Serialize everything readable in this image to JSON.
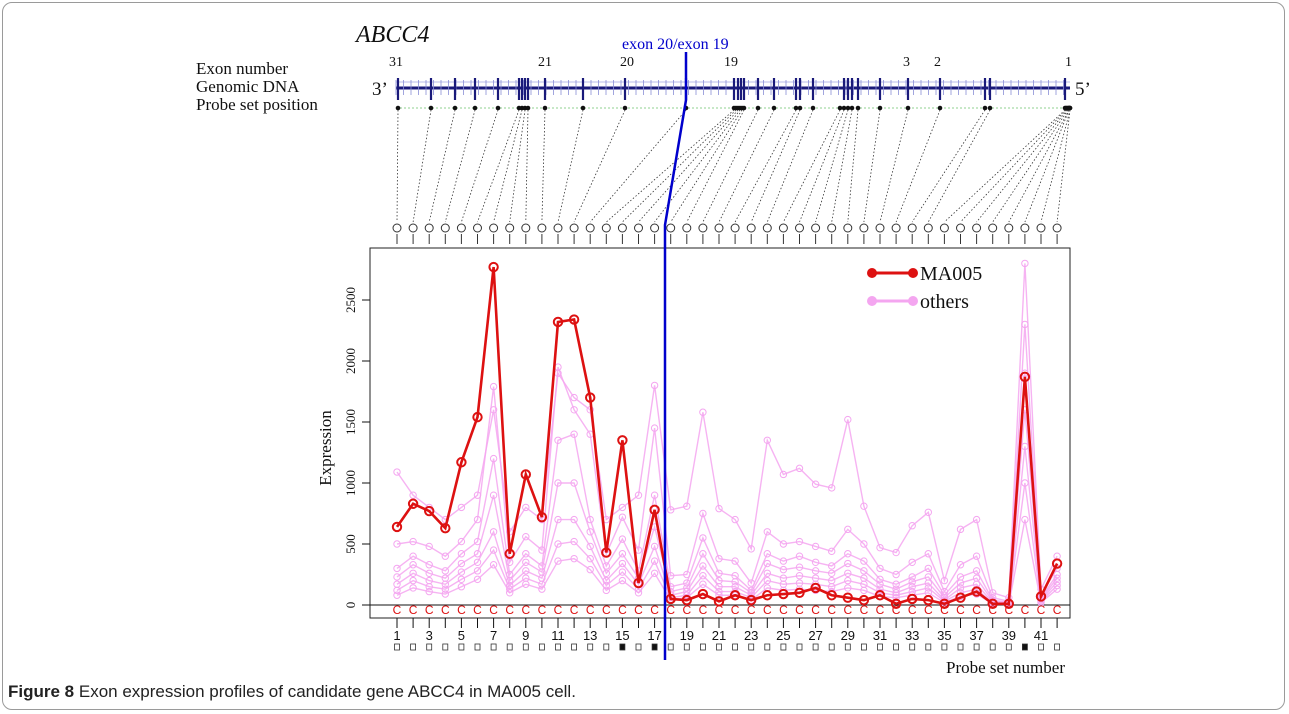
{
  "gene": "ABCC4",
  "genome": {
    "row_labels": [
      "Exon number",
      "Genomic DNA",
      "Probe set position"
    ],
    "end_left": "3’",
    "end_right": "5’",
    "exon_numbers": [
      "31",
      "21",
      "20",
      "19",
      "3",
      "2",
      "1"
    ],
    "marker_label": "exon 20/exon 19"
  },
  "caption": {
    "prefix": "Figure 8",
    "text": "Exon expression profiles of candidate gene ABCC4 in MA005 cell."
  },
  "colors": {
    "ma005": "#dd1111",
    "others": "#f4a6f0",
    "marker": "#0000cc",
    "genome": "#1a1a7a"
  },
  "chart_data": {
    "type": "line",
    "xlabel": "Probe set number",
    "ylabel": "Expression",
    "ylim": [
      -50,
      2900
    ],
    "yticks": [
      0,
      500,
      1000,
      1500,
      2000,
      2500
    ],
    "xtick_labels": [
      "1",
      "3",
      "5",
      "7",
      "9",
      "11",
      "13",
      "15",
      "17",
      "19",
      "21",
      "23",
      "25",
      "27",
      "29",
      "31",
      "33",
      "35",
      "37",
      "39",
      "41"
    ],
    "x": [
      1,
      2,
      3,
      4,
      5,
      6,
      7,
      8,
      9,
      10,
      11,
      12,
      13,
      14,
      15,
      16,
      17,
      18,
      19,
      20,
      21,
      22,
      23,
      24,
      25,
      26,
      27,
      28,
      29,
      30,
      31,
      32,
      33,
      34,
      35,
      36,
      37,
      38,
      39,
      40,
      41,
      42
    ],
    "legend": [
      "MA005",
      "others"
    ],
    "series": [
      {
        "name": "MA005",
        "values": [
          640,
          830,
          770,
          630,
          1170,
          1540,
          2770,
          420,
          1070,
          720,
          2320,
          2340,
          1700,
          430,
          1350,
          180,
          780,
          50,
          40,
          90,
          30,
          80,
          40,
          80,
          90,
          100,
          140,
          80,
          60,
          40,
          80,
          10,
          50,
          40,
          10,
          60,
          110,
          10,
          10,
          1870,
          70,
          340
        ]
      },
      {
        "values": [
          1090,
          900,
          800,
          700,
          800,
          900,
          1600,
          600,
          800,
          700,
          1900,
          1700,
          1600,
          700,
          800,
          900,
          1800,
          780,
          810,
          1580,
          790,
          700,
          460,
          1350,
          1070,
          1120,
          990,
          960,
          1520,
          810,
          470,
          430,
          650,
          760,
          200,
          620,
          700,
          100,
          60,
          2800,
          130,
          400
        ]
      },
      {
        "values": [
          500,
          520,
          480,
          400,
          520,
          700,
          1790,
          350,
          560,
          450,
          1950,
          1600,
          1400,
          420,
          720,
          450,
          1450,
          240,
          250,
          750,
          380,
          360,
          180,
          600,
          500,
          520,
          480,
          440,
          620,
          500,
          300,
          250,
          350,
          420,
          110,
          330,
          400,
          60,
          30,
          2300,
          80,
          300
        ]
      },
      {
        "values": [
          300,
          400,
          330,
          280,
          420,
          520,
          1200,
          250,
          420,
          320,
          1350,
          1400,
          700,
          320,
          540,
          280,
          900,
          150,
          180,
          550,
          260,
          240,
          120,
          420,
          360,
          400,
          350,
          320,
          420,
          360,
          210,
          170,
          230,
          300,
          80,
          230,
          280,
          40,
          20,
          1900,
          60,
          250
        ]
      },
      {
        "values": [
          230,
          330,
          260,
          220,
          340,
          420,
          900,
          200,
          350,
          270,
          1000,
          1000,
          600,
          260,
          420,
          220,
          640,
          110,
          140,
          420,
          200,
          190,
          100,
          340,
          290,
          310,
          280,
          260,
          340,
          280,
          170,
          130,
          190,
          230,
          60,
          180,
          220,
          30,
          15,
          1600,
          50,
          220
        ]
      },
      {
        "values": [
          170,
          260,
          200,
          170,
          270,
          350,
          600,
          160,
          280,
          220,
          700,
          700,
          480,
          200,
          340,
          170,
          480,
          80,
          110,
          320,
          150,
          150,
          80,
          260,
          220,
          240,
          220,
          200,
          260,
          220,
          130,
          100,
          150,
          180,
          40,
          140,
          170,
          20,
          10,
          1300,
          40,
          190
        ]
      },
      {
        "values": [
          120,
          200,
          150,
          130,
          210,
          280,
          450,
          130,
          220,
          170,
          500,
          520,
          380,
          160,
          270,
          130,
          360,
          60,
          80,
          240,
          110,
          110,
          60,
          200,
          170,
          180,
          170,
          150,
          200,
          170,
          100,
          80,
          110,
          140,
          30,
          100,
          130,
          15,
          8,
          1000,
          30,
          160
        ]
      },
      {
        "values": [
          80,
          140,
          110,
          90,
          150,
          210,
          330,
          100,
          170,
          130,
          360,
          380,
          290,
          120,
          200,
          100,
          260,
          40,
          60,
          170,
          80,
          80,
          40,
          140,
          120,
          130,
          120,
          110,
          140,
          120,
          70,
          60,
          80,
          100,
          20,
          70,
          90,
          10,
          5,
          700,
          20,
          130
        ]
      }
    ]
  }
}
